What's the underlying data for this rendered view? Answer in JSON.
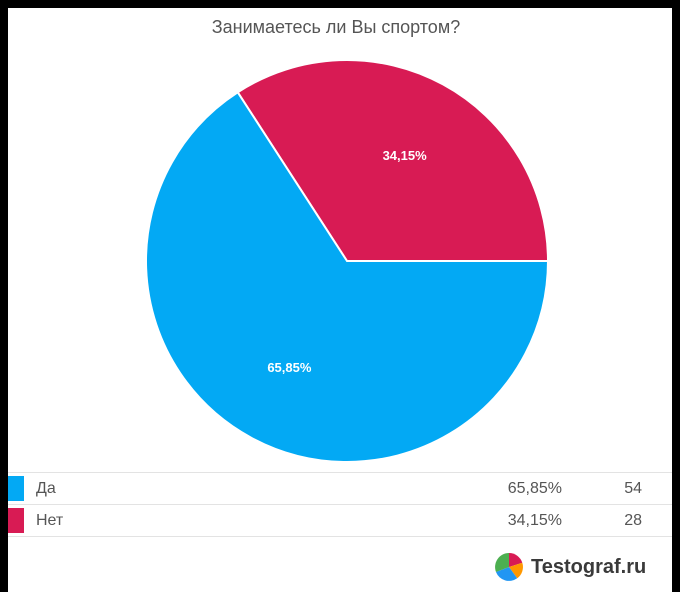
{
  "chart_data": {
    "type": "pie",
    "title": "Занимаетесь ли Вы спортом?",
    "categories": [
      "Да",
      "Нет"
    ],
    "values": [
      54,
      28
    ],
    "percent_labels": [
      "65,85%",
      "34,15%"
    ],
    "colors": [
      "#03a9f4",
      "#d81b54"
    ],
    "legend_position": "bottom"
  },
  "legend": {
    "rows": [
      {
        "label": "Да",
        "percent": "65,85%",
        "count": "54",
        "color": "#03a9f4"
      },
      {
        "label": "Нет",
        "percent": "34,15%",
        "count": "28",
        "color": "#d81b54"
      }
    ]
  },
  "brand": {
    "name": "Testograf.ru",
    "logo_icon": "testograf-logo-icon"
  }
}
